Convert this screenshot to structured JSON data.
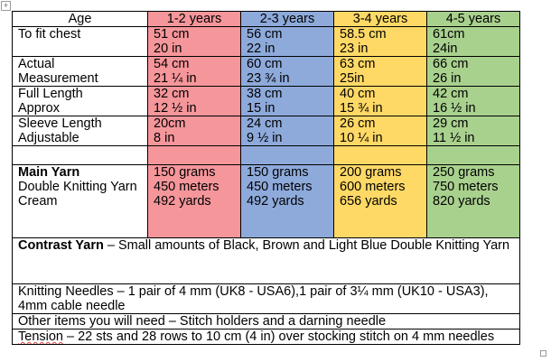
{
  "header": {
    "age_label": "Age",
    "columns": [
      "1-2 years",
      "2-3 years",
      "3-4 years",
      "4-5 years"
    ]
  },
  "rows": [
    {
      "label": [
        "To fit chest",
        ""
      ],
      "values": [
        [
          "51 cm",
          "20 in"
        ],
        [
          "56 cm",
          "22 in"
        ],
        [
          "58.5 cm",
          "23 in"
        ],
        [
          "61cm",
          "24in"
        ]
      ]
    },
    {
      "label": [
        "Actual",
        "Measurement"
      ],
      "values": [
        [
          "54 cm",
          "21 ¼ in"
        ],
        [
          "60 cm",
          "23 ¾ in"
        ],
        [
          "63 cm",
          "25in"
        ],
        [
          "66 cm",
          "26 in"
        ]
      ]
    },
    {
      "label": [
        "Full Length",
        "Approx"
      ],
      "values": [
        [
          "32 cm",
          "12 ½ in"
        ],
        [
          "38 cm",
          "15 in"
        ],
        [
          "40 cm",
          "15 ¾ in"
        ],
        [
          "42 cm",
          "16 ½ in"
        ]
      ]
    },
    {
      "label": [
        "Sleeve Length",
        "Adjustable"
      ],
      "values": [
        [
          "20cm",
          "8 in"
        ],
        [
          "24 cm",
          "9 ½ in"
        ],
        [
          "26 cm",
          "10 ¼ in"
        ],
        [
          "29 cm",
          "11 ½ in"
        ]
      ]
    }
  ],
  "yarn": {
    "label": [
      "Main Yarn",
      "Double Knitting Yarn",
      "Cream"
    ],
    "values": [
      [
        "150 grams",
        "450 meters",
        "492 yards"
      ],
      [
        "150 grams",
        "450 meters",
        "492 yards"
      ],
      [
        "200 grams",
        "600 meters",
        "656 yards"
      ],
      [
        "250 grams",
        "750 meters",
        "820 yards"
      ]
    ]
  },
  "contrast": {
    "title": "Contrast Yarn",
    "text": " – Small amounts of Black, Brown and Light Blue Double Knitting Yarn"
  },
  "needles": {
    "text": "Knitting Needles – 1 pair of 4 mm (UK8 - USA6),1  pair of 3¼ mm (UK10 - USA3), 4mm cable needle"
  },
  "other": {
    "text": "Other items you will need – Stitch holders and a darning needle"
  },
  "tension": {
    "word": "Tension",
    "text": " – 22 sts and 28 rows to 10 cm (4 in) over stocking stitch on 4 mm needles"
  },
  "colors": {
    "col1": "#f5969b",
    "col2": "#8eaadb",
    "col3": "#ffd966",
    "col4": "#a9d18e"
  }
}
